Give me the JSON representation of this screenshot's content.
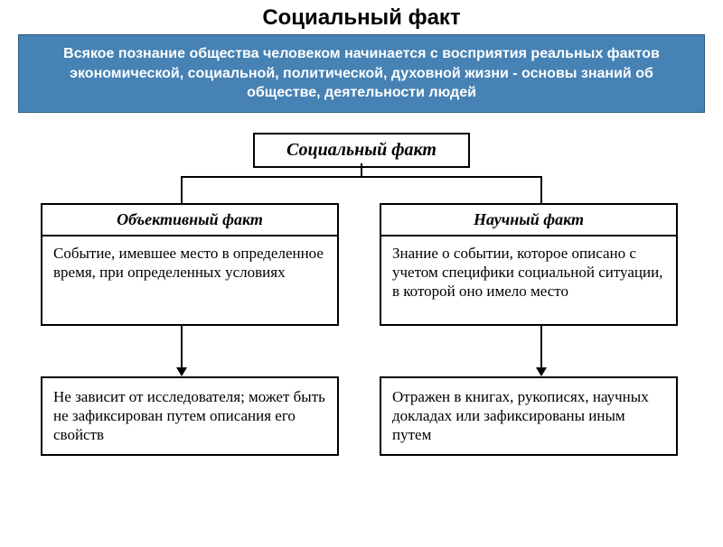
{
  "title": "Социальный факт",
  "intro": "Всякое познание общества человеком начинается с восприятия реальных фактов экономической, социальной, политической, духовной жизни - основы знаний об обществе, деятельности людей",
  "diagram": {
    "root": "Социальный факт",
    "left": {
      "title": "Объективный факт",
      "desc": "Событие, имевшее место в определенное время, при определенных условиях",
      "leaf": "Не зависит от исследователя; может быть не зафиксирован путем описания его свойств"
    },
    "right": {
      "title": "Научный факт",
      "desc": "Знание о событии, которое описано с учетом специфики социальной ситуации, в которой оно имело место",
      "leaf": "Отражен в книгах, рукописях, научных докладах или зафиксированы иным путем"
    }
  },
  "styles": {
    "intro_bg": "#4682b4",
    "intro_border": "#2a5a80",
    "intro_text_color": "#ffffff",
    "border_color": "#000000",
    "title_fontsize": 24,
    "intro_fontsize": 16,
    "node_title_fontsize": 18,
    "node_body_fontsize": 17,
    "root_fontsize": 20,
    "font_body": "Times New Roman",
    "font_title": "Arial"
  }
}
